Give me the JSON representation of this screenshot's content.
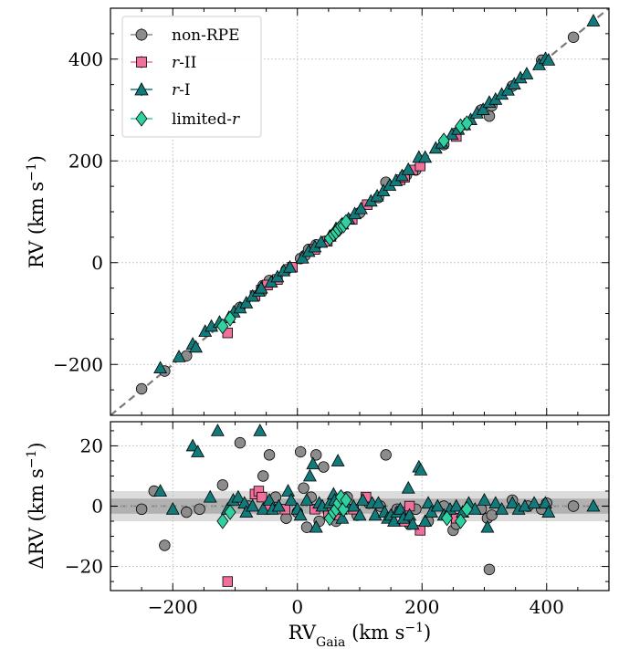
{
  "colors": {
    "non_rpe": "#8c8c8c",
    "r_ii": "#f0709b",
    "r_i": "#127a7a",
    "limited_r": "#2fd1a1",
    "band_outer": "#d6d6d6",
    "band_inner": "#a9a9a9",
    "diag": "#7a7a7a",
    "grid": "#b5b5b5"
  },
  "chart_data": [
    {
      "type": "scatter",
      "title": "",
      "xlabel": "RV_Gaia (km s^-1)",
      "ylabel": "RV (km s^-1)",
      "xlim": [
        -300,
        500
      ],
      "ylim": [
        -300,
        500
      ],
      "xticks": [
        -200,
        0,
        200,
        400
      ],
      "yticks": [
        -200,
        0,
        200,
        400
      ],
      "xtick_labels": [
        "−200",
        "0",
        "200",
        "400"
      ],
      "ytick_labels": [
        "−200",
        "0",
        "200",
        "400"
      ],
      "grid": true,
      "legend_position": "top-left",
      "reference_line": "one-to-one (y = x), dashed",
      "legend": [
        "non-RPE",
        "r-II",
        "r-I",
        "limited-r"
      ],
      "series": [
        {
          "name": "non-RPE",
          "marker": "circle",
          "points": [
            [
              -250,
              -248
            ],
            [
              -213,
              -213
            ],
            [
              -178,
              -183
            ],
            [
              -92,
              -88
            ],
            [
              -55,
              -45
            ],
            [
              -45,
              -35
            ],
            [
              -18,
              -14
            ],
            [
              5,
              8
            ],
            [
              12,
              14
            ],
            [
              18,
              26
            ],
            [
              30,
              35
            ],
            [
              45,
              42
            ],
            [
              62,
              60
            ],
            [
              100,
              98
            ],
            [
              130,
              128
            ],
            [
              142,
              158
            ],
            [
              175,
              172
            ],
            [
              190,
              182
            ],
            [
              235,
              232
            ],
            [
              255,
              255
            ],
            [
              295,
              300
            ],
            [
              308,
              288
            ],
            [
              312,
              308
            ],
            [
              345,
              347
            ],
            [
              392,
              398
            ],
            [
              443,
              443
            ]
          ]
        },
        {
          "name": "r-II",
          "marker": "square",
          "points": [
            [
              -112,
              -138
            ],
            [
              -68,
              -65
            ],
            [
              -58,
              -54
            ],
            [
              -48,
              -44
            ],
            [
              -32,
              -33
            ],
            [
              -8,
              -9
            ],
            [
              28,
              26
            ],
            [
              48,
              42
            ],
            [
              88,
              85
            ],
            [
              112,
              114
            ],
            [
              165,
              163
            ],
            [
              172,
              168
            ],
            [
              185,
              182
            ],
            [
              197,
              190
            ],
            [
              255,
              248
            ]
          ]
        },
        {
          "name": "r-I",
          "marker": "triangle",
          "points": [
            [
              -220,
              -207
            ],
            [
              -190,
              -185
            ],
            [
              -168,
              -160
            ],
            [
              -163,
              -166
            ],
            [
              -148,
              -135
            ],
            [
              -138,
              -125
            ],
            [
              -125,
              -117
            ],
            [
              -110,
              -108
            ],
            [
              -102,
              -97
            ],
            [
              -92,
              -89
            ],
            [
              -82,
              -79
            ],
            [
              -72,
              -66
            ],
            [
              -62,
              -56
            ],
            [
              -58,
              -50
            ],
            [
              -42,
              -38
            ],
            [
              -32,
              -28
            ],
            [
              -22,
              -16
            ],
            [
              -12,
              -9
            ],
            [
              8,
              9
            ],
            [
              18,
              22
            ],
            [
              28,
              31
            ],
            [
              38,
              40
            ],
            [
              52,
              52
            ],
            [
              62,
              67
            ],
            [
              72,
              76
            ],
            [
              82,
              86
            ],
            [
              92,
              96
            ],
            [
              102,
              106
            ],
            [
              118,
              121
            ],
            [
              128,
              131
            ],
            [
              138,
              141
            ],
            [
              148,
              152
            ],
            [
              158,
              161
            ],
            [
              168,
              171
            ],
            [
              178,
              183
            ],
            [
              195,
              207
            ],
            [
              205,
              207
            ],
            [
              222,
              225
            ],
            [
              232,
              235
            ],
            [
              248,
              252
            ],
            [
              258,
              262
            ],
            [
              268,
              271
            ],
            [
              278,
              281
            ],
            [
              288,
              294
            ],
            [
              298,
              301
            ],
            [
              308,
              315
            ],
            [
              318,
              321
            ],
            [
              328,
              331
            ],
            [
              338,
              339
            ],
            [
              348,
              351
            ],
            [
              358,
              363
            ],
            [
              368,
              371
            ],
            [
              388,
              389
            ],
            [
              398,
              401
            ],
            [
              403,
              398
            ],
            [
              475,
              475
            ]
          ]
        },
        {
          "name": "limited-r",
          "marker": "diamond",
          "points": [
            [
              -120,
              -125
            ],
            [
              -108,
              -110
            ],
            [
              52,
              48
            ],
            [
              58,
              56
            ],
            [
              62,
              60
            ],
            [
              66,
              66
            ],
            [
              70,
              72
            ],
            [
              74,
              73
            ],
            [
              78,
              80
            ],
            [
              235,
              240
            ],
            [
              262,
              268
            ],
            [
              272,
              274
            ]
          ]
        }
      ]
    },
    {
      "type": "scatter",
      "title": "",
      "xlabel": "RV_Gaia (km s^-1)",
      "ylabel": "ΔRV (km s^-1)",
      "xlim": [
        -300,
        500
      ],
      "ylim": [
        -28,
        28
      ],
      "xticks": [
        -200,
        0,
        200,
        400
      ],
      "yticks": [
        -20,
        0,
        20
      ],
      "xtick_labels": [
        "−200",
        "0",
        "200",
        "400"
      ],
      "ytick_labels": [
        "−20",
        "0",
        "20"
      ],
      "grid": true,
      "reference_line": "y = 0, dashed",
      "bands": [
        {
          "halfwidth": 5,
          "shade": "light"
        },
        {
          "halfwidth": 2.5,
          "shade": "dark"
        }
      ],
      "series": [
        {
          "name": "non-RPE",
          "marker": "circle",
          "points": [
            [
              -250,
              -1
            ],
            [
              -230,
              5
            ],
            [
              -213,
              -13
            ],
            [
              -178,
              -2
            ],
            [
              -157,
              -1
            ],
            [
              -120,
              7
            ],
            [
              -92,
              21
            ],
            [
              -78,
              0
            ],
            [
              -55,
              10
            ],
            [
              -45,
              17
            ],
            [
              -35,
              3
            ],
            [
              -18,
              -4
            ],
            [
              0,
              -2
            ],
            [
              5,
              18
            ],
            [
              10,
              6
            ],
            [
              15,
              -7
            ],
            [
              22,
              3
            ],
            [
              30,
              17
            ],
            [
              35,
              -5
            ],
            [
              42,
              13
            ],
            [
              50,
              -2
            ],
            [
              62,
              -5
            ],
            [
              80,
              3
            ],
            [
              96,
              -3
            ],
            [
              115,
              1
            ],
            [
              133,
              0
            ],
            [
              142,
              17
            ],
            [
              160,
              -1
            ],
            [
              175,
              -3
            ],
            [
              180,
              -6
            ],
            [
              190,
              -1
            ],
            [
              210,
              -5
            ],
            [
              235,
              0
            ],
            [
              250,
              -8
            ],
            [
              255,
              -6
            ],
            [
              295,
              -1
            ],
            [
              305,
              -4
            ],
            [
              308,
              -21
            ],
            [
              312,
              -3
            ],
            [
              345,
              2
            ],
            [
              370,
              0
            ],
            [
              392,
              -1
            ],
            [
              400,
              1
            ],
            [
              443,
              0
            ]
          ]
        },
        {
          "name": "r-II",
          "marker": "square",
          "points": [
            [
              -112,
              -25
            ],
            [
              -68,
              4
            ],
            [
              -62,
              5
            ],
            [
              -57,
              3
            ],
            [
              -48,
              -1
            ],
            [
              -20,
              -1
            ],
            [
              28,
              -1
            ],
            [
              50,
              -2
            ],
            [
              65,
              -3
            ],
            [
              90,
              -1
            ],
            [
              110,
              3
            ],
            [
              165,
              -2
            ],
            [
              172,
              -5
            ],
            [
              180,
              0
            ],
            [
              197,
              -8
            ],
            [
              255,
              -4
            ]
          ]
        },
        {
          "name": "r-I",
          "marker": "triangle",
          "points": [
            [
              -220,
              5
            ],
            [
              -200,
              -1
            ],
            [
              -168,
              20
            ],
            [
              -160,
              18
            ],
            [
              -140,
              3
            ],
            [
              -128,
              25
            ],
            [
              -112,
              -1
            ],
            [
              -103,
              2
            ],
            [
              -95,
              3
            ],
            [
              -85,
              1
            ],
            [
              -82,
              -2
            ],
            [
              -72,
              0
            ],
            [
              -60,
              25
            ],
            [
              -55,
              -1
            ],
            [
              -45,
              2
            ],
            [
              -40,
              -1
            ],
            [
              -30,
              0
            ],
            [
              -15,
              5
            ],
            [
              -10,
              2
            ],
            [
              0,
              -1
            ],
            [
              5,
              -3
            ],
            [
              15,
              2
            ],
            [
              20,
              10
            ],
            [
              25,
              14
            ],
            [
              30,
              -7
            ],
            [
              35,
              1
            ],
            [
              40,
              0
            ],
            [
              52,
              1
            ],
            [
              58,
              4
            ],
            [
              60,
              2
            ],
            [
              65,
              15
            ],
            [
              70,
              -1
            ],
            [
              72,
              -4
            ],
            [
              80,
              0
            ],
            [
              90,
              0
            ],
            [
              100,
              -3
            ],
            [
              105,
              2
            ],
            [
              120,
              1
            ],
            [
              125,
              -3
            ],
            [
              130,
              1
            ],
            [
              140,
              -2
            ],
            [
              145,
              -4
            ],
            [
              150,
              -3
            ],
            [
              155,
              -5
            ],
            [
              160,
              -2
            ],
            [
              165,
              -1
            ],
            [
              170,
              -4
            ],
            [
              178,
              6
            ],
            [
              180,
              -3
            ],
            [
              185,
              -6
            ],
            [
              195,
              13
            ],
            [
              198,
              12
            ],
            [
              205,
              -5
            ],
            [
              210,
              1
            ],
            [
              215,
              -2
            ],
            [
              225,
              0
            ],
            [
              235,
              -3
            ],
            [
              245,
              -1
            ],
            [
              255,
              0
            ],
            [
              265,
              -2
            ],
            [
              275,
              1
            ],
            [
              285,
              -1
            ],
            [
              300,
              2
            ],
            [
              305,
              -7
            ],
            [
              318,
              1
            ],
            [
              328,
              -1
            ],
            [
              345,
              1
            ],
            [
              355,
              -1
            ],
            [
              365,
              0
            ],
            [
              380,
              1
            ],
            [
              398,
              1
            ],
            [
              403,
              -2
            ],
            [
              475,
              0
            ]
          ]
        },
        {
          "name": "limited-r",
          "marker": "diamond",
          "points": [
            [
              -120,
              -5
            ],
            [
              -108,
              -2
            ],
            [
              52,
              -4
            ],
            [
              58,
              -2
            ],
            [
              62,
              -1
            ],
            [
              66,
              1
            ],
            [
              70,
              3
            ],
            [
              74,
              -1
            ],
            [
              78,
              2
            ],
            [
              240,
              -4
            ],
            [
              262,
              -5
            ],
            [
              272,
              -1
            ]
          ]
        }
      ]
    }
  ]
}
